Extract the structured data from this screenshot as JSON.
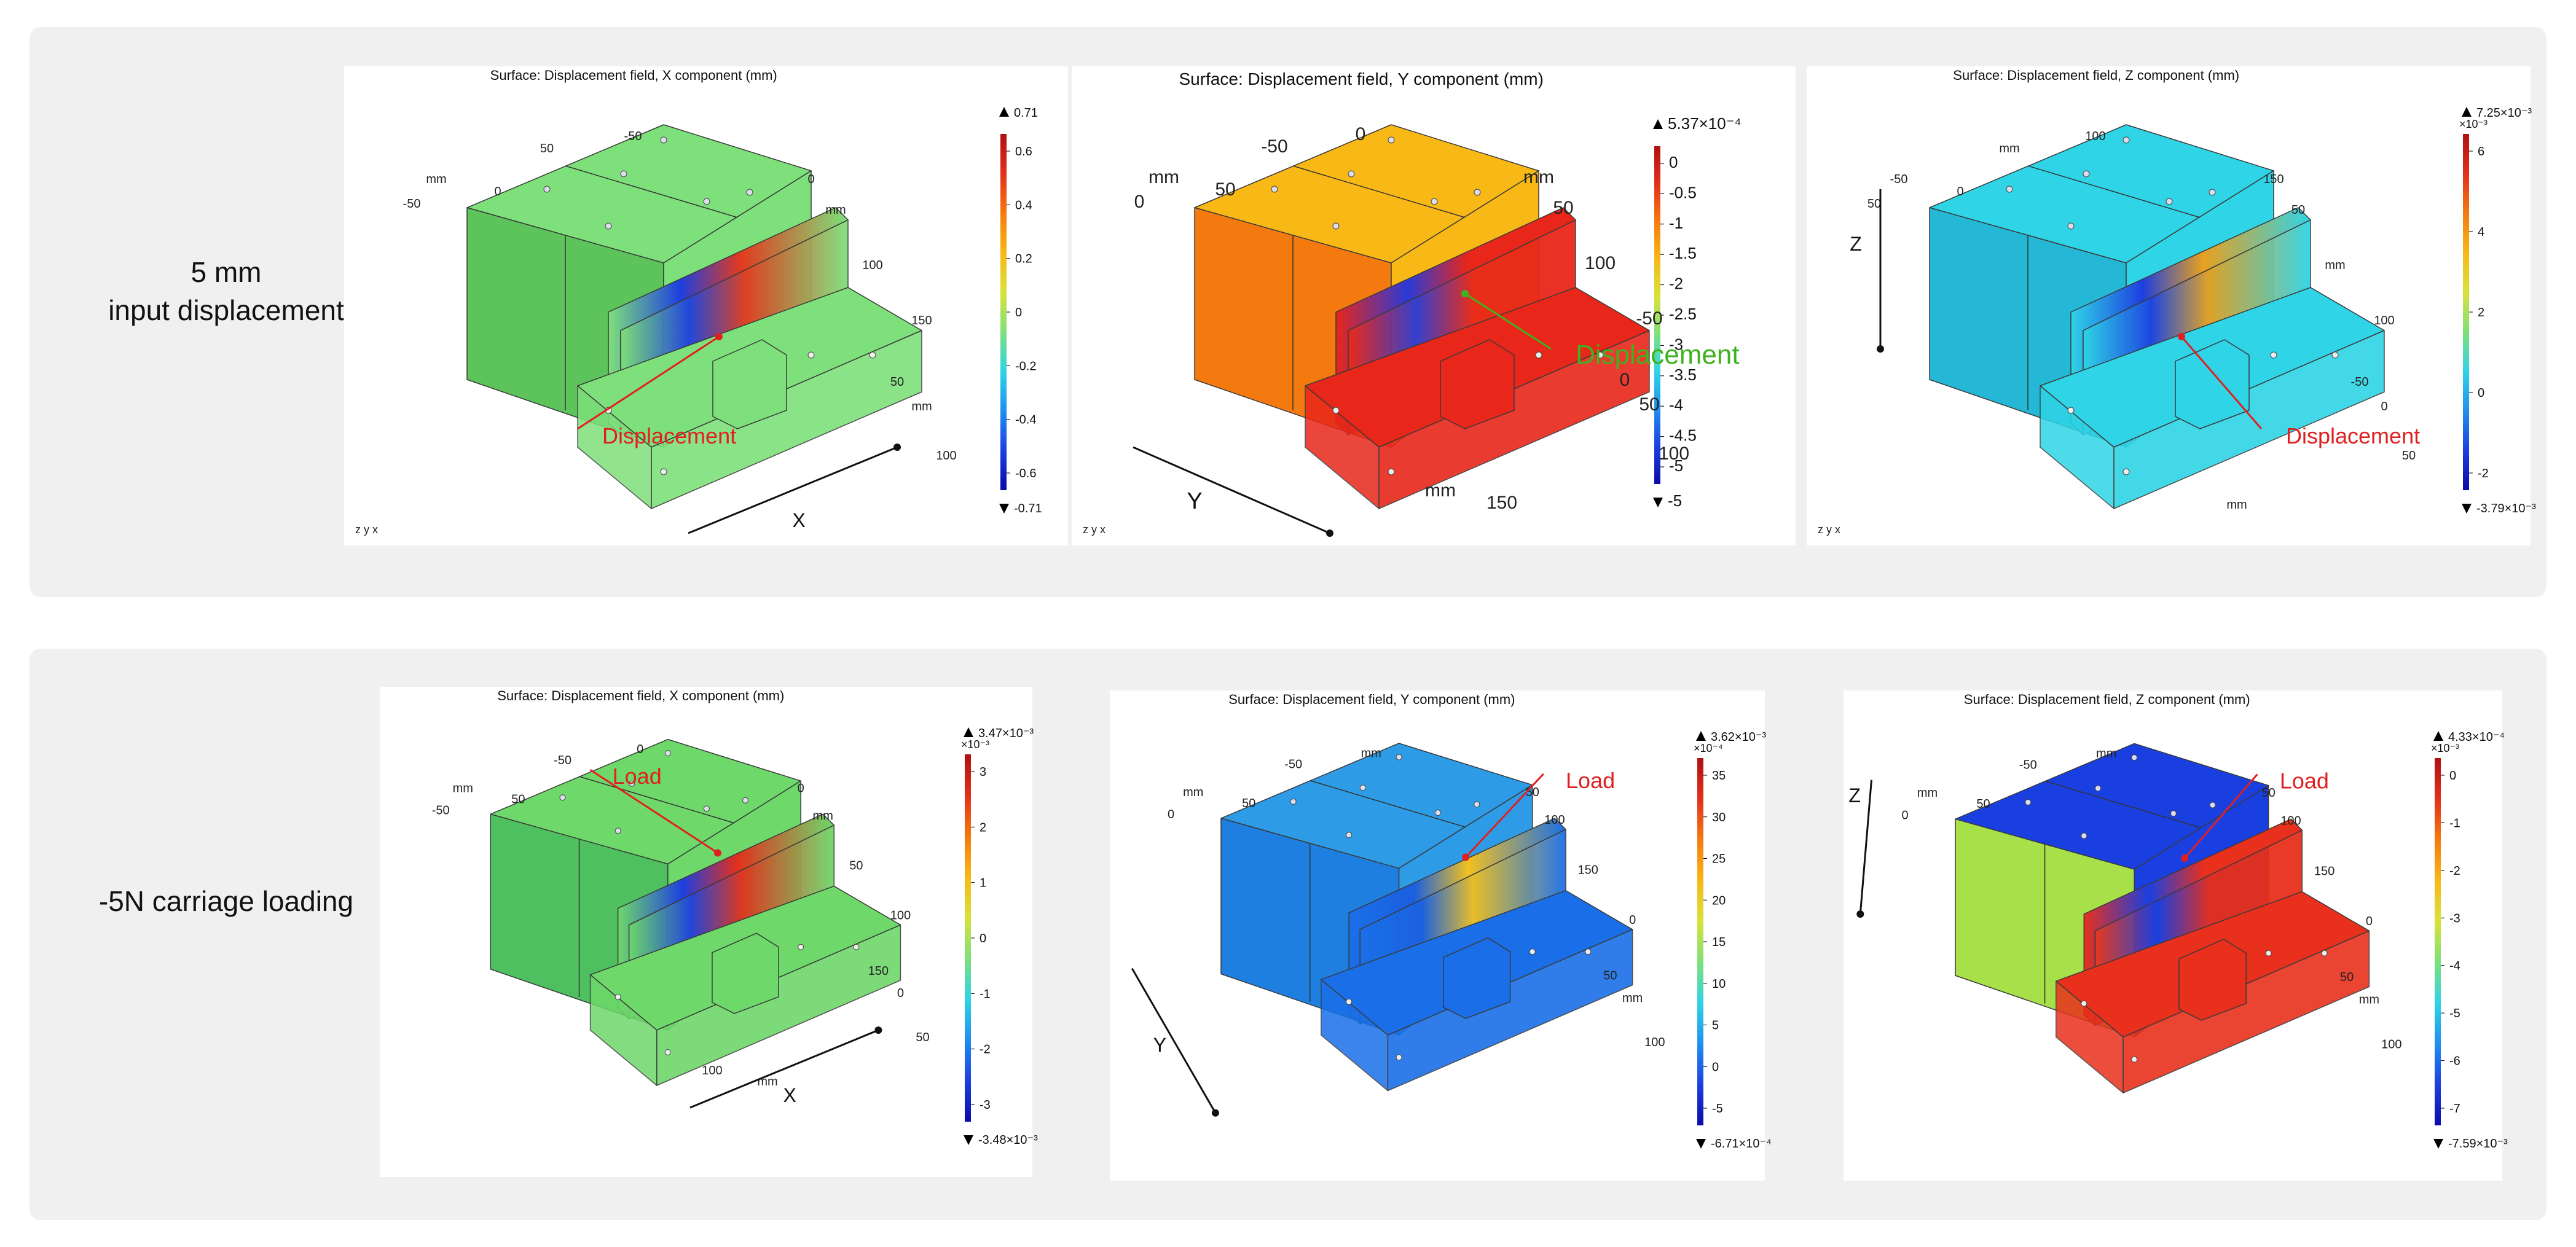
{
  "rows": [
    {
      "label": "5 mm\ninput displacement",
      "plots": [
        {
          "title": "Surface: Displacement field, X component (mm)",
          "max_label": "0.71",
          "min_label": "-0.71",
          "scale_label": "",
          "cb_ticks": [
            "0.6",
            "0.4",
            "0.2",
            "0",
            "-0.2",
            "-0.4",
            "-0.6"
          ],
          "annotation": "Displacement",
          "annotation_color": "#e02020",
          "axis_arrow_label": "X",
          "axis_ticks": [
            "mm",
            "0",
            "50",
            "-50",
            "-50",
            "0",
            "mm",
            "100",
            "150",
            "50",
            "mm",
            "100"
          ],
          "triad": "z y x",
          "colors": {
            "main": "#7ee07a",
            "box_dark": "#5cc45a",
            "part": "#7ee07a",
            "hot": "#e23a1e",
            "cold": "#1d3fe0"
          }
        },
        {
          "title": "Surface: Displacement field, Y component (mm)",
          "max_label": "5.37×10⁻⁴",
          "min_label": "-5",
          "scale_label": "",
          "cb_ticks": [
            "0",
            "-0.5",
            "-1",
            "-1.5",
            "-2",
            "-2.5",
            "-3",
            "-3.5",
            "-4",
            "-4.5",
            "-5"
          ],
          "annotation": "Displacement",
          "annotation_color": "#3fb21f",
          "axis_arrow_label": "Y",
          "axis_ticks": [
            "mm",
            "50",
            "-50",
            "0",
            "0",
            "mm",
            "50",
            "100",
            "-50",
            "0",
            "50",
            "100",
            "150",
            "mm"
          ],
          "triad": "z y x",
          "colors": {
            "main": "#f8b816",
            "box_dark": "#f47a10",
            "part": "#e8261a",
            "hot": "#e8261a",
            "cold": "#2a3ad8"
          }
        },
        {
          "title": "Surface: Displacement field, Z component (mm)",
          "max_label": "7.25×10⁻³",
          "min_label": "-3.79×10⁻³",
          "scale_label": "×10⁻³",
          "cb_ticks": [
            "6",
            "4",
            "2",
            "0",
            "-2"
          ],
          "annotation": "Displacement",
          "annotation_color": "#e02020",
          "axis_arrow_label": "Z",
          "axis_ticks": [
            "-50",
            "0",
            "mm",
            "50",
            "100",
            "150",
            "50",
            "mm",
            "100",
            "-50",
            "0",
            "50",
            "mm"
          ],
          "triad": "z y x",
          "colors": {
            "main": "#2fd4e6",
            "box_dark": "#24b8d6",
            "part": "#2fd4e6",
            "hot": "#e8a020",
            "cold": "#1d3fe0"
          }
        }
      ]
    },
    {
      "label": "-5N carriage loading",
      "plots": [
        {
          "title": "Surface: Displacement field, X component (mm)",
          "max_label": "3.47×10⁻³",
          "min_label": "-3.48×10⁻³",
          "scale_label": "×10⁻³",
          "cb_ticks": [
            "3",
            "2",
            "1",
            "0",
            "-1",
            "-2",
            "-3"
          ],
          "annotation": "Load",
          "annotation_color": "#e02020",
          "axis_arrow_label": "X",
          "axis_ticks": [
            "mm",
            "50",
            "-50",
            "-50",
            "0",
            "0",
            "mm",
            "50",
            "100",
            "150",
            "0",
            "50",
            "mm",
            "100"
          ],
          "triad": "",
          "colors": {
            "main": "#6ed86a",
            "box_dark": "#4ec060",
            "part": "#6ed86a",
            "hot": "#e2301c",
            "cold": "#1d3fe0"
          }
        },
        {
          "title": "Surface: Displacement field, Y component (mm)",
          "max_label": "3.62×10⁻³",
          "min_label": "-6.71×10⁻⁴",
          "scale_label": "×10⁻⁴",
          "cb_ticks": [
            "35",
            "30",
            "25",
            "20",
            "15",
            "10",
            "5",
            "0",
            "-5"
          ],
          "annotation": "Load",
          "annotation_color": "#e02020",
          "axis_arrow_label": "Y",
          "axis_ticks": [
            "mm",
            "50",
            "-50",
            "0",
            "mm",
            "50",
            "100",
            "150",
            "0",
            "50",
            "mm",
            "100"
          ],
          "triad": "",
          "colors": {
            "main": "#2e9be6",
            "box_dark": "#1f7fe0",
            "part": "#1a6fe8",
            "hot": "#f2c020",
            "cold": "#1a5fe0"
          }
        },
        {
          "title": "Surface: Displacement field, Z component (mm)",
          "max_label": "4.33×10⁻⁴",
          "min_label": "-7.59×10⁻³",
          "scale_label": "×10⁻³",
          "cb_ticks": [
            "0",
            "-1",
            "-2",
            "-3",
            "-4",
            "-5",
            "-6",
            "-7"
          ],
          "annotation": "Load",
          "annotation_color": "#e02020",
          "axis_arrow_label": "Z",
          "axis_ticks": [
            "mm",
            "50",
            "-50",
            "0",
            "mm",
            "50",
            "100",
            "150",
            "0",
            "50",
            "mm",
            "100"
          ],
          "triad": "",
          "colors": {
            "main": "#1a3fe0",
            "box_dark": "#a8e04a",
            "part": "#e8301c",
            "hot": "#e8301c",
            "cold": "#1a3fe0"
          }
        }
      ]
    }
  ]
}
